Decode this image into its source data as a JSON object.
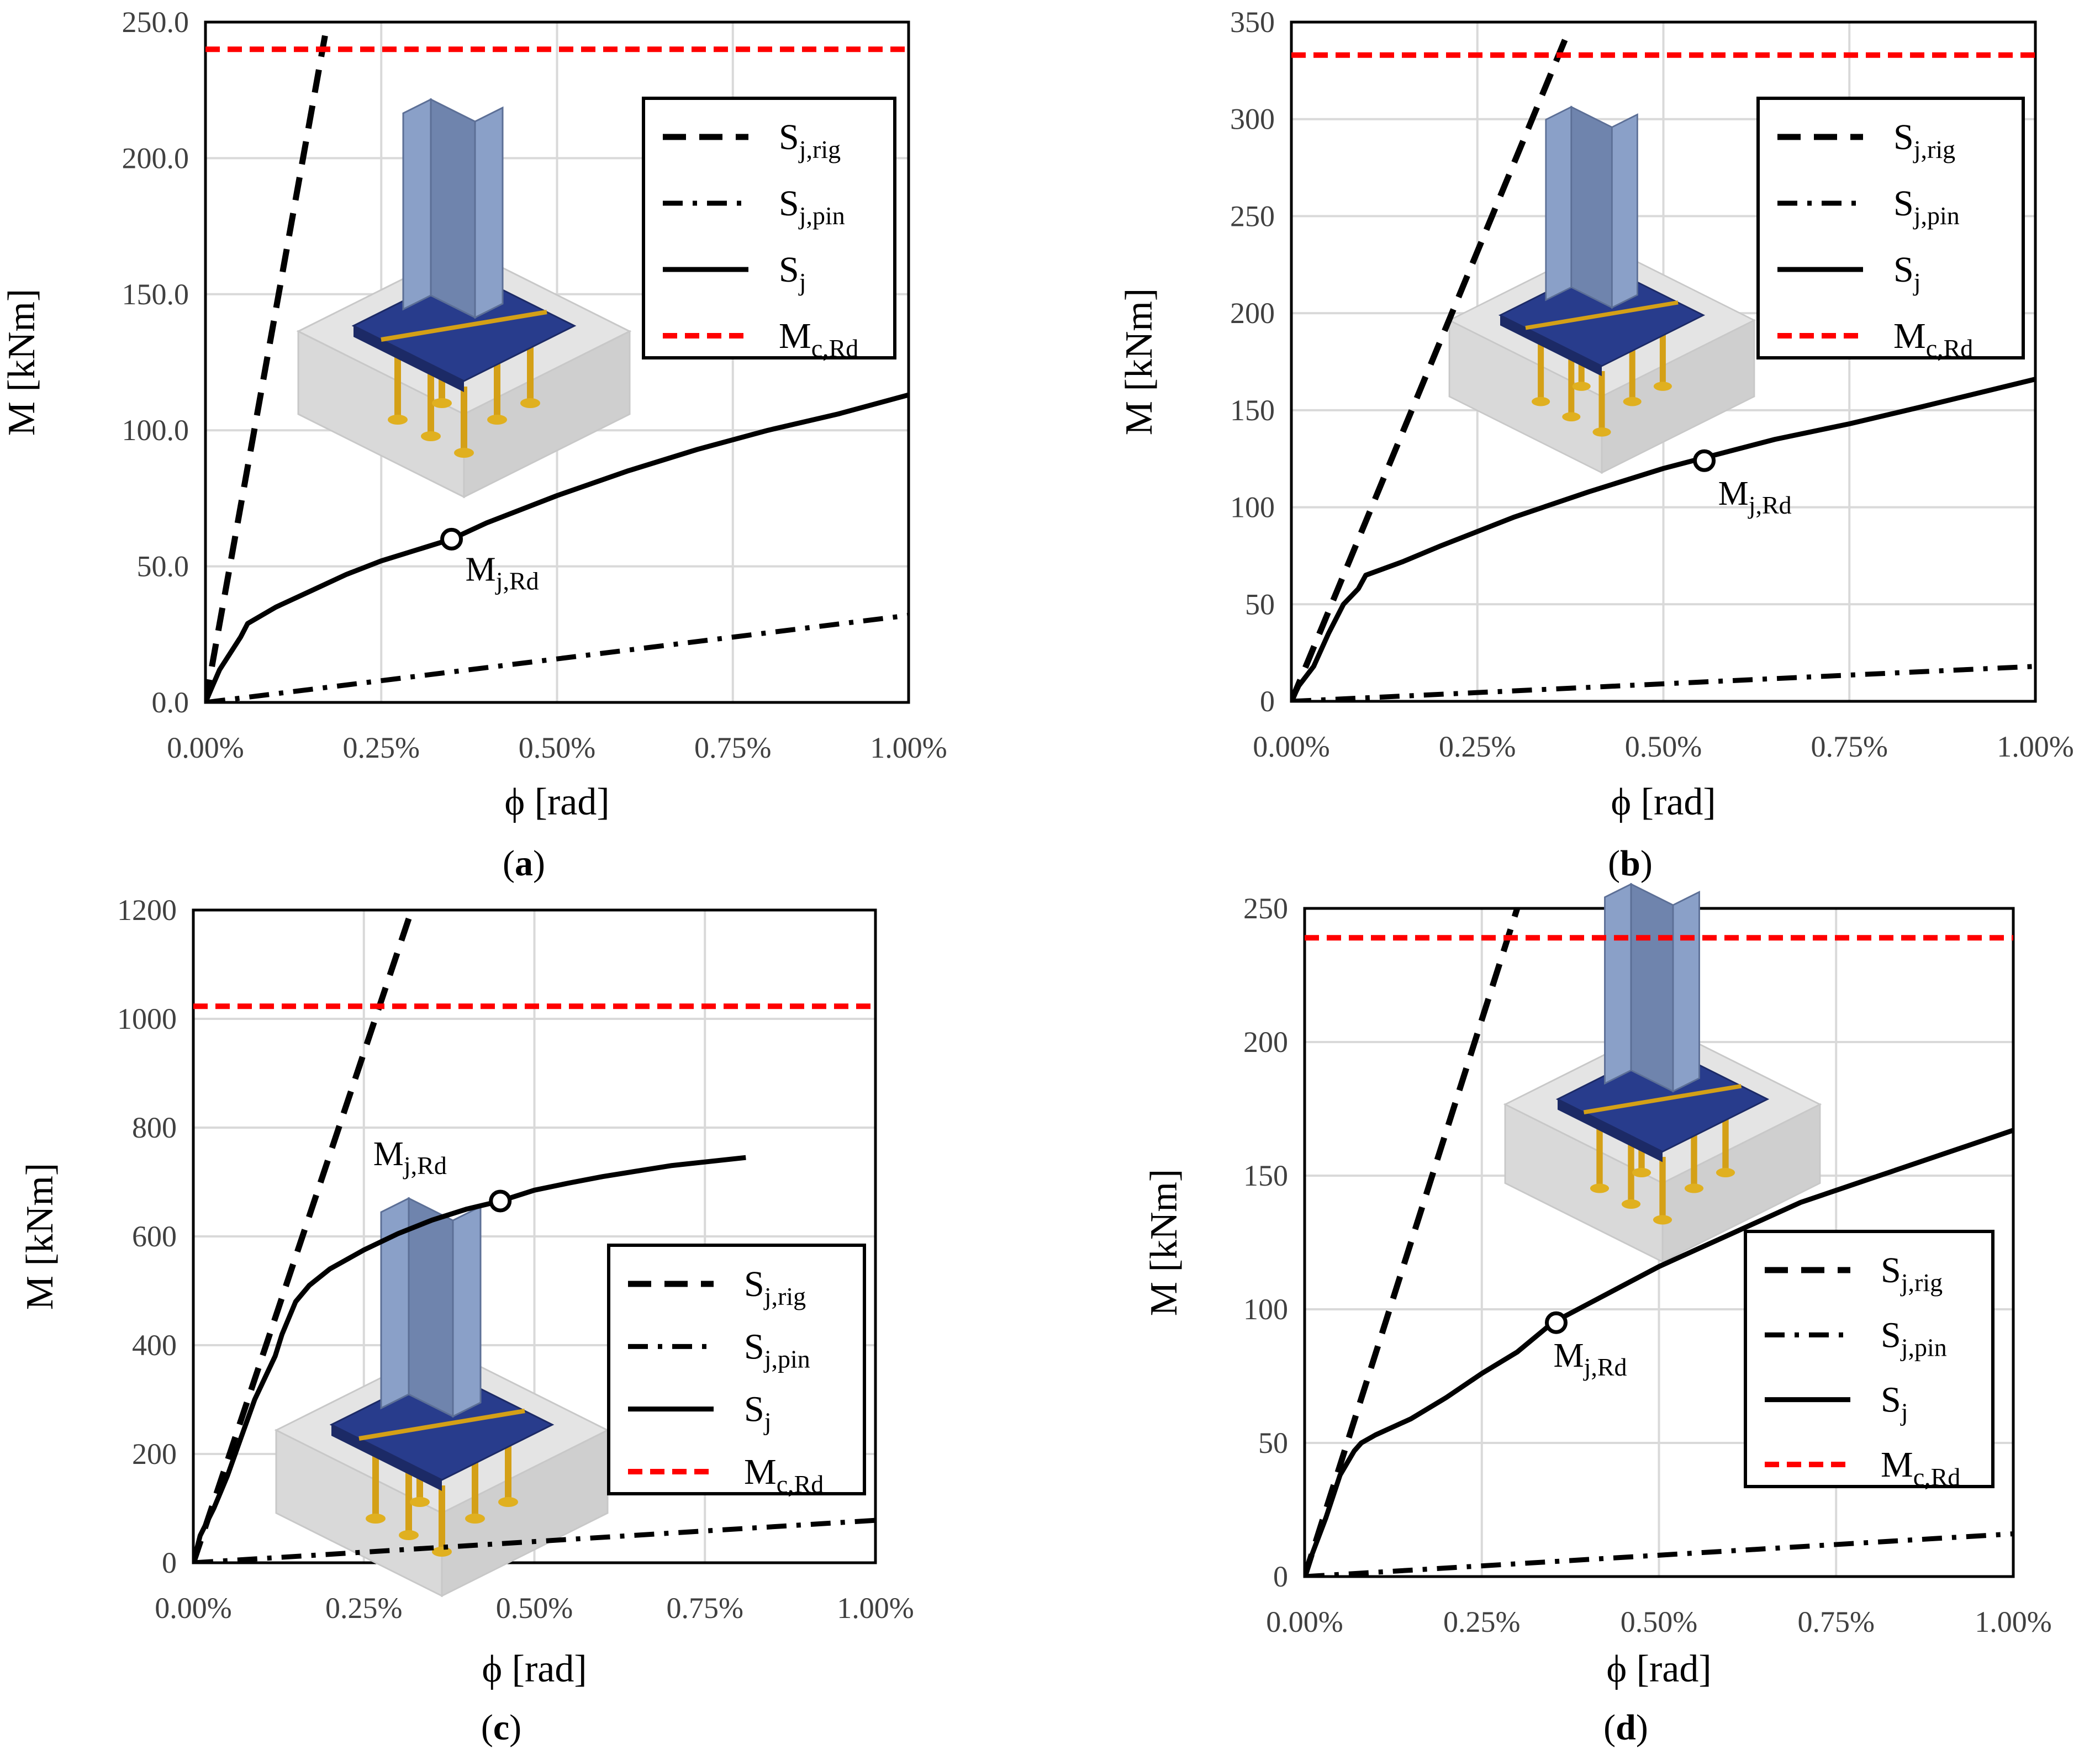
{
  "chart_data": [
    {
      "id": "a",
      "type": "line",
      "panel_label": "a",
      "xlabel": "ϕ [rad]",
      "ylabel": "M [kNm]",
      "xlim": [
        0,
        1.0
      ],
      "ylim": [
        0,
        250
      ],
      "xticks": [
        0,
        0.25,
        0.5,
        0.75,
        1.0
      ],
      "xtick_labels": [
        "0.00%",
        "0.25%",
        "0.50%",
        "0.75%",
        "1.00%"
      ],
      "yticks": [
        0,
        50,
        100,
        150,
        200,
        250
      ],
      "ytick_labels": [
        "0.0",
        "50.0",
        "100.0",
        "150.0",
        "200.0",
        "250.0"
      ],
      "grid": true,
      "legend": {
        "position": "top-right",
        "entries": [
          {
            "main": "S",
            "sub": "j,rig",
            "style": "dashed-black"
          },
          {
            "main": "S",
            "sub": "j,pin",
            "style": "dashdot-black"
          },
          {
            "main": "S",
            "sub": "j",
            "style": "solid-black"
          },
          {
            "main": "M",
            "sub": "c,Rd",
            "style": "dashed-red"
          }
        ]
      },
      "series": [
        {
          "name": "S_j,rig",
          "x": [
            0,
            0.17
          ],
          "y": [
            0,
            245
          ]
        },
        {
          "name": "S_j,pin",
          "x": [
            0,
            1.0
          ],
          "y": [
            0,
            32
          ]
        },
        {
          "name": "S_j",
          "x": [
            0,
            0.01,
            0.02,
            0.04,
            0.05,
            0.06,
            0.1,
            0.15,
            0.2,
            0.25,
            0.3,
            0.35,
            0.4,
            0.5,
            0.6,
            0.7,
            0.8,
            0.9,
            1.0
          ],
          "y": [
            0,
            6,
            12,
            20,
            24,
            29,
            35,
            41,
            47,
            52,
            56,
            60,
            66,
            76,
            85,
            93,
            100,
            106,
            113
          ]
        },
        {
          "name": "M_c,Rd",
          "x": [
            0,
            1.0
          ],
          "y": [
            240,
            240
          ]
        }
      ],
      "marker": {
        "label_main": "M",
        "label_sub": "j,Rd",
        "x": 0.35,
        "y": 60
      }
    },
    {
      "id": "b",
      "type": "line",
      "panel_label": "b",
      "xlabel": "ϕ [rad]",
      "ylabel": "M [kNm]",
      "xlim": [
        0,
        1.0
      ],
      "ylim": [
        0,
        350
      ],
      "xticks": [
        0,
        0.25,
        0.5,
        0.75,
        1.0
      ],
      "xtick_labels": [
        "0.00%",
        "0.25%",
        "0.50%",
        "0.75%",
        "1.00%"
      ],
      "yticks": [
        0,
        50,
        100,
        150,
        200,
        250,
        300,
        350
      ],
      "ytick_labels": [
        "0",
        "50",
        "100",
        "150",
        "200",
        "250",
        "300",
        "350"
      ],
      "grid": true,
      "legend": {
        "position": "top-right",
        "entries": [
          {
            "main": "S",
            "sub": "j,rig",
            "style": "dashed-black"
          },
          {
            "main": "S",
            "sub": "j,pin",
            "style": "dashdot-black"
          },
          {
            "main": "S",
            "sub": "j",
            "style": "solid-black"
          },
          {
            "main": "M",
            "sub": "c,Rd",
            "style": "dashed-red"
          }
        ]
      },
      "series": [
        {
          "name": "S_j,rig",
          "x": [
            0,
            0.37
          ],
          "y": [
            0,
            343
          ]
        },
        {
          "name": "S_j,pin",
          "x": [
            0,
            1.0
          ],
          "y": [
            0,
            18
          ]
        },
        {
          "name": "S_j",
          "x": [
            0,
            0.01,
            0.03,
            0.05,
            0.07,
            0.09,
            0.1,
            0.15,
            0.2,
            0.3,
            0.4,
            0.5,
            0.55,
            0.65,
            0.75,
            0.85,
            1.0
          ],
          "y": [
            0,
            8,
            18,
            35,
            50,
            58,
            65,
            72,
            80,
            95,
            108,
            120,
            125,
            135,
            143,
            152,
            166
          ]
        },
        {
          "name": "M_c,Rd",
          "x": [
            0,
            1.0
          ],
          "y": [
            333,
            333
          ]
        }
      ],
      "marker": {
        "label_main": "M",
        "label_sub": "j,Rd",
        "x": 0.555,
        "y": 124
      }
    },
    {
      "id": "c",
      "type": "line",
      "panel_label": "c",
      "xlabel": "ϕ [rad]",
      "ylabel": "M [kNm]",
      "xlim": [
        0,
        1.0
      ],
      "ylim": [
        0,
        1200
      ],
      "xticks": [
        0,
        0.25,
        0.5,
        0.75,
        1.0
      ],
      "xtick_labels": [
        "0.00%",
        "0.25%",
        "0.50%",
        "0.75%",
        "1.00%"
      ],
      "yticks": [
        0,
        200,
        400,
        600,
        800,
        1000,
        1200
      ],
      "ytick_labels": [
        "0",
        "200",
        "400",
        "600",
        "800",
        "1000",
        "1200"
      ],
      "grid": true,
      "legend": {
        "position": "bottom-right",
        "entries": [
          {
            "main": "S",
            "sub": "j,rig",
            "style": "dashed-black"
          },
          {
            "main": "S",
            "sub": "j,pin",
            "style": "dashdot-black"
          },
          {
            "main": "S",
            "sub": "j",
            "style": "solid-black"
          },
          {
            "main": "M",
            "sub": "c,Rd",
            "style": "dashed-red"
          }
        ]
      },
      "series": [
        {
          "name": "S_j,rig",
          "x": [
            0,
            0.32
          ],
          "y": [
            0,
            1200
          ]
        },
        {
          "name": "S_j,pin",
          "x": [
            0,
            1.0
          ],
          "y": [
            0,
            78
          ]
        },
        {
          "name": "S_j",
          "x": [
            0,
            0.01,
            0.03,
            0.05,
            0.07,
            0.09,
            0.12,
            0.13,
            0.15,
            0.17,
            0.2,
            0.25,
            0.3,
            0.35,
            0.4,
            0.45,
            0.5,
            0.55,
            0.6,
            0.7,
            0.81
          ],
          "y": [
            0,
            50,
            100,
            160,
            230,
            300,
            380,
            420,
            480,
            510,
            540,
            575,
            605,
            630,
            650,
            665,
            685,
            698,
            710,
            730,
            745
          ]
        },
        {
          "name": "M_c,Rd",
          "x": [
            0,
            1.0
          ],
          "y": [
            1023,
            1023
          ]
        }
      ],
      "marker": {
        "label_main": "M",
        "label_sub": "j,Rd",
        "x": 0.45,
        "y": 665
      }
    },
    {
      "id": "d",
      "type": "line",
      "panel_label": "d",
      "xlabel": "ϕ [rad]",
      "ylabel": "M [kNm]",
      "xlim": [
        0,
        1.0
      ],
      "ylim": [
        0,
        250
      ],
      "xticks": [
        0,
        0.25,
        0.5,
        0.75,
        1.0
      ],
      "xtick_labels": [
        "0.00%",
        "0.25%",
        "0.50%",
        "0.75%",
        "1.00%"
      ],
      "yticks": [
        0,
        50,
        100,
        150,
        200,
        250
      ],
      "ytick_labels": [
        "0",
        "50",
        "100",
        "150",
        "200",
        "250"
      ],
      "grid": true,
      "legend": {
        "position": "bottom-right",
        "entries": [
          {
            "main": "S",
            "sub": "j,rig",
            "style": "dashed-black"
          },
          {
            "main": "S",
            "sub": "j,pin",
            "style": "dashdot-black"
          },
          {
            "main": "S",
            "sub": "j",
            "style": "solid-black"
          },
          {
            "main": "M",
            "sub": "c,Rd",
            "style": "dashed-red"
          }
        ]
      },
      "series": [
        {
          "name": "S_j,rig",
          "x": [
            0,
            0.3
          ],
          "y": [
            0,
            250
          ]
        },
        {
          "name": "S_j,pin",
          "x": [
            0,
            1.0
          ],
          "y": [
            0,
            16
          ]
        },
        {
          "name": "S_j",
          "x": [
            0,
            0.01,
            0.03,
            0.05,
            0.07,
            0.08,
            0.1,
            0.15,
            0.2,
            0.25,
            0.3,
            0.35,
            0.4,
            0.5,
            0.6,
            0.7,
            0.8,
            0.9,
            1.0
          ],
          "y": [
            0,
            8,
            22,
            38,
            47,
            50,
            53,
            59,
            67,
            76,
            84,
            95,
            102,
            116,
            128,
            140,
            149,
            158,
            167
          ]
        },
        {
          "name": "M_c,Rd",
          "x": [
            0,
            1.0
          ],
          "y": [
            239,
            239
          ]
        }
      ],
      "marker": {
        "label_main": "M",
        "label_sub": "j,Rd",
        "x": 0.355,
        "y": 95
      }
    }
  ]
}
